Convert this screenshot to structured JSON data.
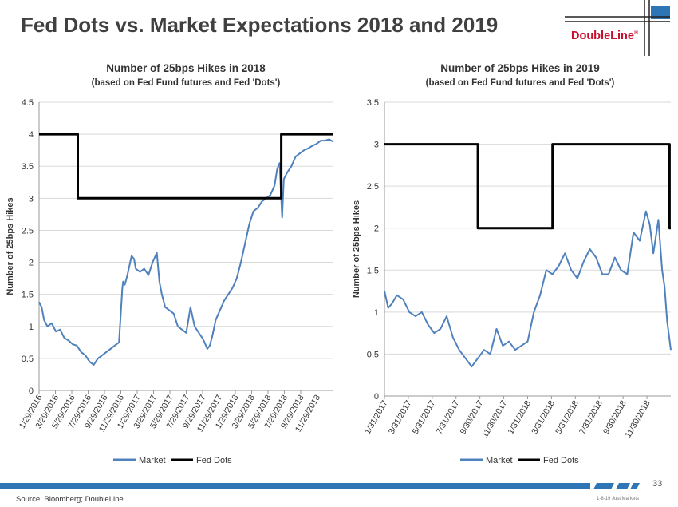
{
  "page": {
    "title": "Fed Dots vs. Market Expectations 2018 and 2019",
    "page_number": "33",
    "source": "Source: Bloomberg; DoubleLine",
    "footer_tag": "1-8-19 Just Markets"
  },
  "logo": {
    "text": "DoubleLine",
    "registered": "®"
  },
  "colors": {
    "market": "#4f81bd",
    "fed_dots": "#000000",
    "grid": "#d9d9d9",
    "footer": "#2e75b6"
  },
  "chart_data": [
    {
      "type": "line",
      "title": "Number of 25bps Hikes in 2018",
      "subtitle": "(based on Fed Fund futures and Fed 'Dots')",
      "xlabel": "",
      "ylabel": "Number of 25bps Hikes",
      "ylim": [
        0,
        4.5
      ],
      "ytick_step": 0.5,
      "yticks": [
        "0",
        "0.5",
        "1",
        "1.5",
        "2",
        "2.5",
        "3",
        "3.5",
        "4",
        "4.5"
      ],
      "xlim": [
        0,
        35
      ],
      "xticks": [
        "1/29/2016",
        "3/29/2016",
        "5/29/2016",
        "7/29/2016",
        "9/29/2016",
        "11/29/2016",
        "1/29/2017",
        "3/29/2017",
        "5/29/2017",
        "7/29/2017",
        "9/29/2017",
        "11/29/2017",
        "1/29/2018",
        "3/29/2018",
        "5/29/2018",
        "7/29/2018",
        "9/29/2018",
        "11/29/2018"
      ],
      "legend": [
        "Market",
        "Fed Dots"
      ],
      "series": [
        {
          "name": "Market",
          "x": [
            0,
            0.3,
            0.6,
            1,
            1.5,
            2,
            2.5,
            3,
            3.5,
            4,
            4.5,
            5,
            5.5,
            6,
            6.5,
            7,
            7.5,
            8,
            8.5,
            9,
            9.5,
            9.9,
            10,
            10.2,
            10.5,
            11,
            11.3,
            11.5,
            12,
            12.5,
            13,
            13.5,
            14,
            14.3,
            14.6,
            15,
            15.5,
            16,
            16.5,
            17,
            17.5,
            18,
            18.5,
            19,
            19.5,
            20,
            20.3,
            20.6,
            21,
            21.5,
            22,
            22.5,
            23,
            23.5,
            24,
            24.5,
            25,
            25.5,
            26,
            26.5,
            27,
            27.5,
            28,
            28.3,
            28.6,
            28.9,
            29.1,
            29.5,
            30,
            30.5,
            31,
            31.5,
            32,
            32.5,
            33,
            33.5,
            34,
            34.5,
            35
          ],
          "values": [
            1.38,
            1.3,
            1.1,
            1.0,
            1.05,
            0.92,
            0.95,
            0.82,
            0.78,
            0.72,
            0.7,
            0.6,
            0.55,
            0.45,
            0.4,
            0.5,
            0.55,
            0.6,
            0.65,
            0.7,
            0.75,
            1.6,
            1.7,
            1.65,
            1.8,
            2.1,
            2.05,
            1.9,
            1.85,
            1.9,
            1.8,
            2.0,
            2.15,
            1.7,
            1.5,
            1.3,
            1.25,
            1.2,
            1.0,
            0.95,
            0.9,
            1.3,
            1.0,
            0.9,
            0.8,
            0.65,
            0.7,
            0.85,
            1.1,
            1.25,
            1.4,
            1.5,
            1.6,
            1.75,
            2.0,
            2.3,
            2.6,
            2.8,
            2.85,
            2.95,
            3.0,
            3.05,
            3.2,
            3.45,
            3.55,
            2.7,
            3.3,
            3.4,
            3.5,
            3.65,
            3.7,
            3.75,
            3.78,
            3.82,
            3.85,
            3.9,
            3.9,
            3.92,
            3.88
          ]
        },
        {
          "name": "Fed Dots",
          "x": [
            0,
            4.6,
            4.6,
            28.8,
            28.8,
            35
          ],
          "values": [
            4,
            4,
            3,
            3,
            4,
            4
          ]
        }
      ]
    },
    {
      "type": "line",
      "title": "Number of 25bps Hikes in 2019",
      "subtitle": "(based on Fed Fund futures and Fed 'Dots')",
      "xlabel": "",
      "ylabel": "Number of 25bps Hikes",
      "ylim": [
        0,
        3.5
      ],
      "ytick_step": 0.5,
      "yticks": [
        "0",
        "0.5",
        "1",
        "1.5",
        "2",
        "2.5",
        "3",
        "3.5"
      ],
      "xlim": [
        0,
        23
      ],
      "xticks": [
        "1/31/2017",
        "3/31/2017",
        "5/31/2017",
        "7/31/2017",
        "9/30/2017",
        "11/30/2017",
        "1/31/2018",
        "3/31/2018",
        "5/31/2018",
        "7/31/2018",
        "9/30/2018",
        "11/30/2018"
      ],
      "legend": [
        "Market",
        "Fed Dots"
      ],
      "series": [
        {
          "name": "Market",
          "x": [
            0,
            0.3,
            0.6,
            1,
            1.5,
            2,
            2.5,
            3,
            3.5,
            4,
            4.5,
            5,
            5.5,
            6,
            6.5,
            7,
            7.5,
            8,
            8.5,
            9,
            9.5,
            10,
            10.5,
            11,
            11.5,
            12,
            12.5,
            13,
            13.5,
            14,
            14.5,
            15,
            15.5,
            16,
            16.5,
            17,
            17.5,
            18,
            18.5,
            19,
            19.5,
            20,
            20.5,
            21,
            21.3,
            21.6,
            22,
            22.3,
            22.5,
            22.7,
            23
          ],
          "values": [
            1.25,
            1.05,
            1.1,
            1.2,
            1.15,
            1.0,
            0.95,
            1.0,
            0.85,
            0.75,
            0.8,
            0.95,
            0.7,
            0.55,
            0.45,
            0.35,
            0.45,
            0.55,
            0.5,
            0.8,
            0.6,
            0.65,
            0.55,
            0.6,
            0.65,
            1.0,
            1.2,
            1.5,
            1.45,
            1.55,
            1.7,
            1.5,
            1.4,
            1.6,
            1.75,
            1.65,
            1.45,
            1.45,
            1.65,
            1.5,
            1.45,
            1.95,
            1.85,
            2.2,
            2.05,
            1.7,
            2.1,
            1.5,
            1.3,
            0.9,
            0.55
          ]
        },
        {
          "name": "Fed Dots",
          "x": [
            0,
            7.5,
            7.5,
            13.5,
            13.5,
            22.9,
            22.9,
            23
          ],
          "values": [
            3,
            3,
            2,
            2,
            3,
            3,
            2,
            2
          ]
        }
      ]
    }
  ]
}
